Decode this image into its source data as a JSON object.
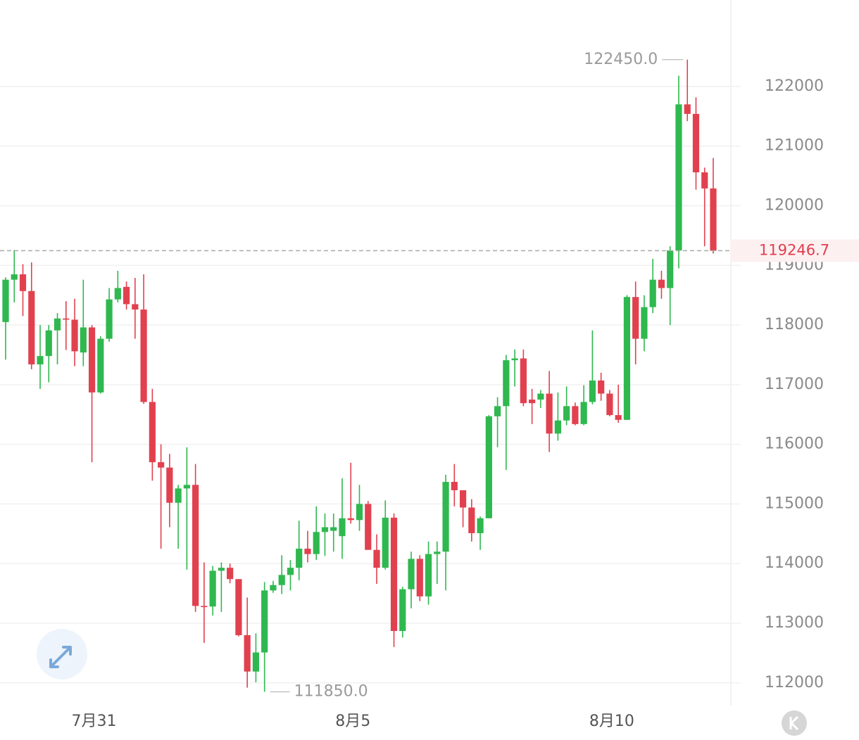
{
  "chart_data": {
    "type": "candlestick",
    "categories": [
      null,
      null,
      null,
      null,
      null,
      null,
      null,
      null,
      null,
      null,
      "7月31",
      null,
      null,
      null,
      null,
      null,
      null,
      null,
      null,
      null,
      null,
      null,
      null,
      null,
      null,
      null,
      null,
      null,
      null,
      null,
      null,
      null,
      null,
      null,
      null,
      null,
      null,
      null,
      null,
      null,
      "8月5",
      null,
      null,
      null,
      null,
      null,
      null,
      null,
      null,
      null,
      null,
      null,
      null,
      null,
      null,
      null,
      null,
      null,
      null,
      null,
      null,
      null,
      null,
      null,
      null,
      null,
      null,
      null,
      null,
      null,
      "8月10",
      null,
      null,
      null,
      null,
      null,
      null,
      null,
      null,
      null,
      null,
      null,
      null
    ],
    "open": [
      118050,
      118760,
      118850,
      118570,
      117340,
      117480,
      117910,
      118110,
      118090,
      117540,
      117960,
      116870,
      117770,
      118430,
      118640,
      118350,
      118260,
      116710,
      115700,
      115610,
      115020,
      115260,
      115320,
      113290,
      113280,
      113880,
      113930,
      113740,
      112800,
      112190,
      112510,
      113550,
      113640,
      113810,
      113930,
      114250,
      114160,
      114530,
      114550,
      114460,
      114760,
      114730,
      115000,
      114230,
      113930,
      114770,
      112870,
      113570,
      114080,
      113450,
      114160,
      114200,
      115370,
      115230,
      114940,
      114510,
      114760,
      116470,
      116640,
      117410,
      117440,
      116750,
      116750,
      116850,
      116180,
      116400,
      116640,
      116340,
      116710,
      117070,
      116850,
      116490,
      116410,
      118470,
      117770,
      118300,
      118760,
      118620,
      119250,
      121700,
      121540,
      120560,
      120290
    ],
    "high": [
      118800,
      119260,
      119020,
      119050,
      118000,
      118000,
      118200,
      118400,
      118440,
      118760,
      118000,
      117810,
      118620,
      118910,
      118730,
      118790,
      118850,
      116930,
      116000,
      115840,
      115320,
      115950,
      115670,
      114020,
      113960,
      114020,
      114000,
      113740,
      113430,
      112830,
      113690,
      113710,
      114140,
      114060,
      114720,
      114550,
      114960,
      114840,
      114840,
      115430,
      115690,
      115320,
      115050,
      114490,
      115060,
      114840,
      113610,
      114200,
      114140,
      114370,
      114370,
      115490,
      115670,
      115230,
      115080,
      114790,
      116490,
      116790,
      117500,
      117590,
      117590,
      116930,
      116910,
      117230,
      116870,
      116970,
      116700,
      116990,
      117910,
      117200,
      116910,
      117000,
      118500,
      118730,
      118500,
      119110,
      118910,
      119320,
      122180,
      122450,
      121820,
      120640,
      120800
    ],
    "low": [
      117420,
      118380,
      118150,
      117260,
      116930,
      117040,
      117340,
      117580,
      117310,
      117310,
      115700,
      116850,
      117720,
      118380,
      118260,
      117770,
      116680,
      115390,
      114250,
      114610,
      114250,
      113900,
      113190,
      112670,
      113130,
      113190,
      113670,
      112780,
      111920,
      112010,
      111850,
      113510,
      113490,
      113550,
      113720,
      114020,
      114060,
      114130,
      114200,
      114080,
      114670,
      114550,
      114230,
      113660,
      113900,
      112600,
      112760,
      113250,
      113370,
      113310,
      113660,
      113550,
      114960,
      114610,
      114370,
      114230,
      114760,
      115950,
      115570,
      116970,
      116640,
      116340,
      116610,
      115870,
      116060,
      116320,
      116320,
      116320,
      116670,
      116730,
      116470,
      116360,
      116410,
      117340,
      117560,
      118200,
      118440,
      118000,
      118950,
      121420,
      120270,
      119320,
      119200
    ],
    "close": [
      118760,
      118850,
      118570,
      117340,
      117480,
      117910,
      118110,
      118090,
      117560,
      117960,
      116870,
      117770,
      118430,
      118620,
      118350,
      118260,
      116710,
      115700,
      115610,
      115020,
      115260,
      115320,
      113290,
      113270,
      113880,
      113930,
      113740,
      112800,
      112190,
      112510,
      113550,
      113640,
      113810,
      113930,
      114250,
      114160,
      114530,
      114610,
      114610,
      114760,
      114730,
      115000,
      114230,
      113930,
      114770,
      112870,
      113570,
      114080,
      113450,
      114160,
      114200,
      115370,
      115230,
      114940,
      114510,
      114760,
      116470,
      116640,
      117410,
      117440,
      116690,
      116690,
      116850,
      116180,
      116400,
      116640,
      116340,
      116710,
      117070,
      116850,
      116490,
      116410,
      118470,
      117770,
      118300,
      118760,
      118620,
      119250,
      121700,
      121540,
      120560,
      120290,
      119246.7
    ],
    "up_color": "#2fb84f",
    "down_color": "#e1414f",
    "ylim": [
      111620,
      123450
    ],
    "yticks": [
      112000,
      113000,
      114000,
      115000,
      116000,
      117000,
      118000,
      119000,
      120000,
      121000,
      122000
    ],
    "grid": true,
    "max_label": {
      "value": 122450,
      "label": "122450.0"
    },
    "min_label": {
      "value": 111850,
      "label": "111850.0"
    },
    "last_price": 119246.7
  }
}
